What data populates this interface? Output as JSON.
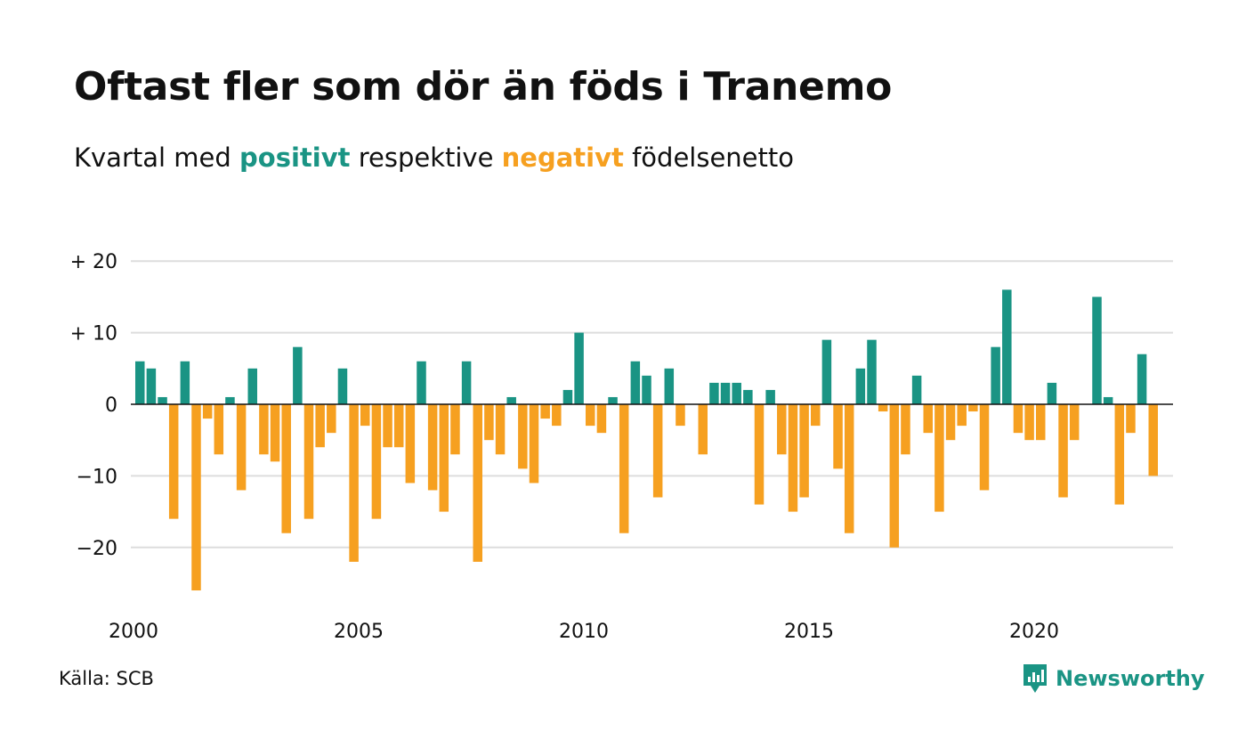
{
  "title": "Oftast fler som dör än föds i Tranemo",
  "subtitle": {
    "prefix": "Kvartal med",
    "positive_word": "positivt",
    "middle": "respektive",
    "negative_word": "negativt",
    "suffix": "födelsenetto"
  },
  "source": "Källa: SCB",
  "brand": "Newsworthy",
  "colors": {
    "positive": "#1a9484",
    "negative": "#f6a020",
    "grid": "#dddddd",
    "brand": "#1a9484"
  },
  "chart_data": {
    "type": "bar",
    "title": "Oftast fler som dör än föds i Tranemo",
    "subtitle": "Kvartal med positivt respektive negativt födelsenetto",
    "ylim": [
      -27,
      22
    ],
    "yticks": [
      {
        "value": 20,
        "label": "+ 20"
      },
      {
        "value": 10,
        "label": "+ 10"
      },
      {
        "value": 0,
        "label": "0"
      },
      {
        "value": -10,
        "label": "−10"
      },
      {
        "value": -20,
        "label": "−20"
      }
    ],
    "xticks": [
      "2000",
      "2005",
      "2010",
      "2015",
      "2020"
    ],
    "start_year": 2000,
    "grid": true,
    "values": [
      6,
      5,
      1,
      -16,
      6,
      -26,
      -2,
      -7,
      1,
      -12,
      5,
      -7,
      -8,
      -18,
      8,
      -16,
      -6,
      -4,
      5,
      -22,
      -3,
      -16,
      -6,
      -6,
      -11,
      6,
      -12,
      -15,
      -7,
      6,
      -22,
      -5,
      -7,
      1,
      -9,
      -11,
      -2,
      -3,
      2,
      10,
      -3,
      -4,
      1,
      -18,
      6,
      4,
      -13,
      5,
      -3,
      0,
      -7,
      3,
      3,
      3,
      2,
      -14,
      2,
      -7,
      -15,
      -13,
      -3,
      9,
      -9,
      -18,
      5,
      9,
      -1,
      -20,
      -7,
      4,
      -4,
      -15,
      -5,
      -3,
      -1,
      -12,
      8,
      16,
      -4,
      -5,
      -5,
      3,
      -13,
      -5,
      0,
      15,
      1,
      -14,
      -4,
      7,
      -10
    ]
  }
}
